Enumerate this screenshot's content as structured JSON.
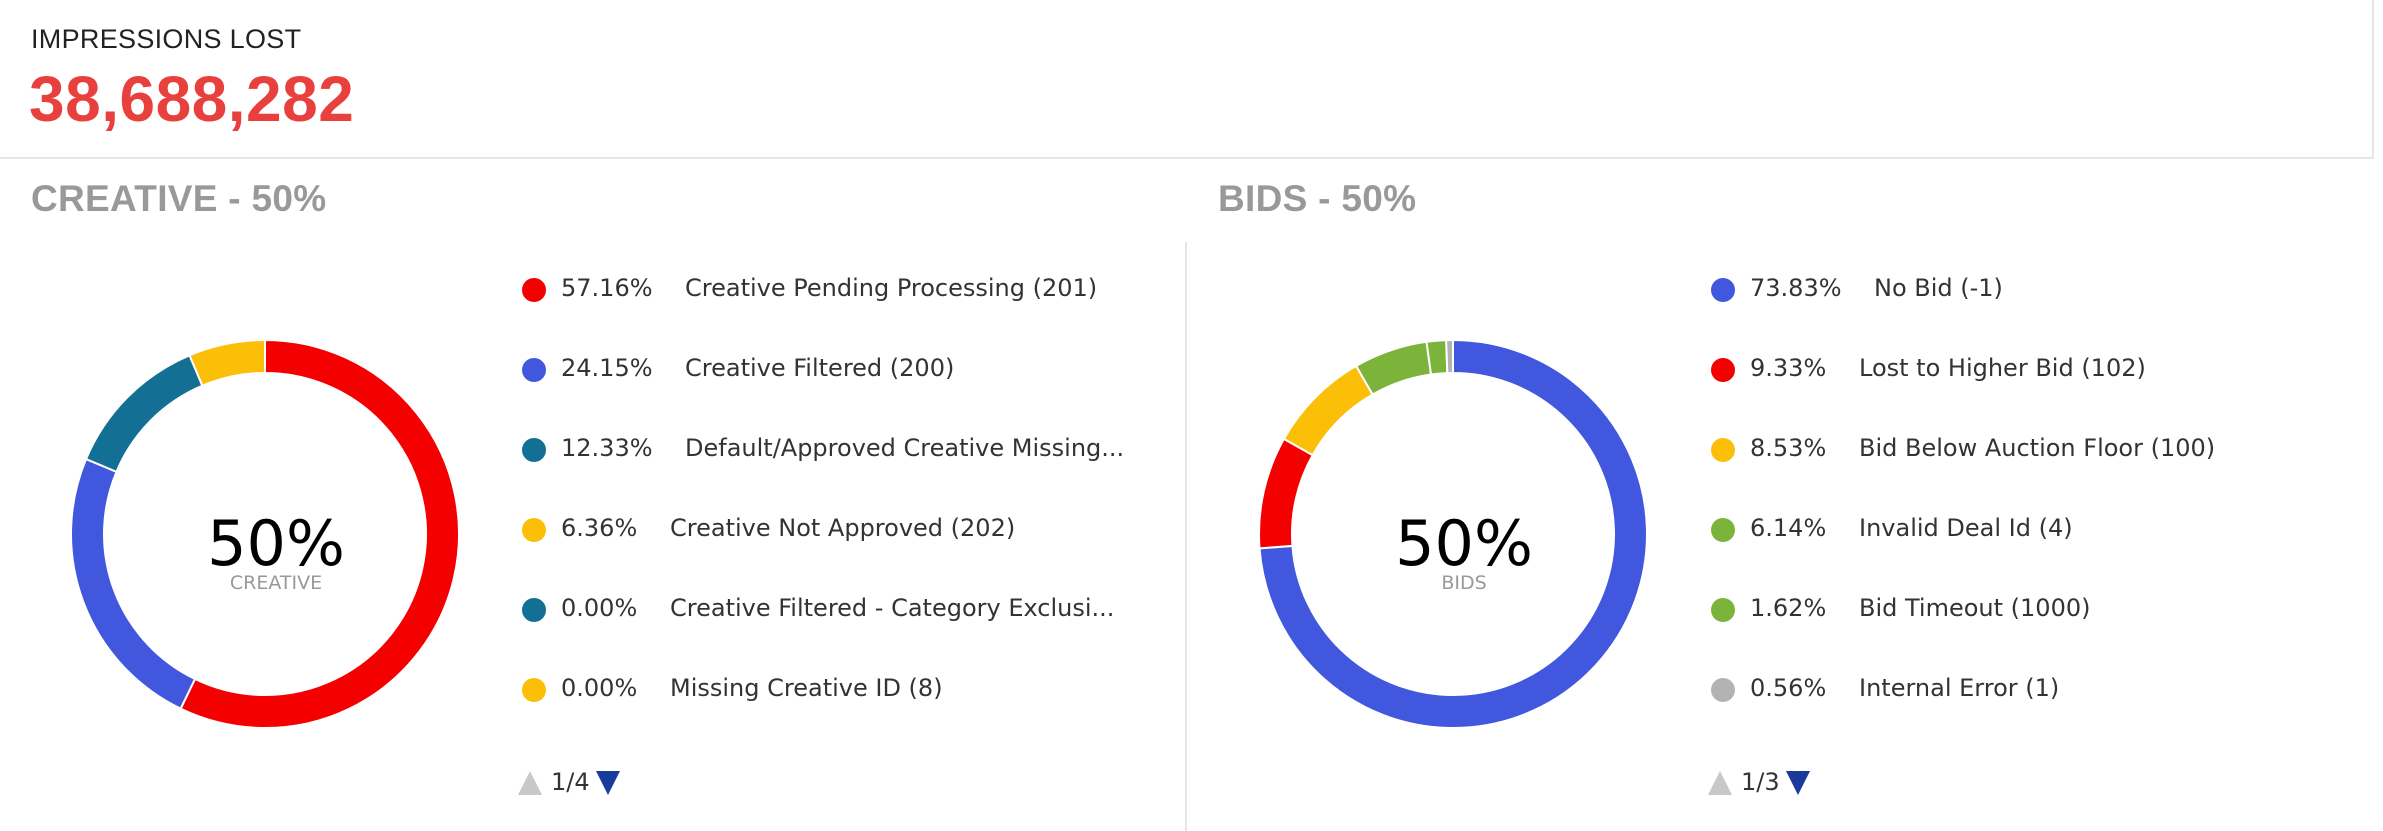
{
  "kpi": {
    "label": "IMPRESSIONS LOST",
    "value": "38,688,282"
  },
  "colors": {
    "kpi_value": "#e8413d",
    "section_title": "#999999"
  },
  "chart_data": [
    {
      "type": "pie",
      "title": "CREATIVE - 50%",
      "center_value": "50%",
      "center_label": "CREATIVE",
      "slices": [
        {
          "label": "Creative Pending Processing (201)",
          "pct_label": "57.16%",
          "value": 57.16,
          "color": "#f40000"
        },
        {
          "label": "Creative Filtered (200)",
          "pct_label": "24.15%",
          "value": 24.15,
          "color": "#4158de"
        },
        {
          "label": "Default/Approved Creative Missing...",
          "pct_label": "12.33%",
          "value": 12.33,
          "color": "#136f94"
        },
        {
          "label": "Creative Not Approved (202)",
          "pct_label": "6.36%",
          "value": 6.36,
          "color": "#fcbf07"
        },
        {
          "label": "Creative Filtered - Category Exclusi...",
          "pct_label": "0.00%",
          "value": 0.0,
          "color": "#136f94"
        },
        {
          "label": "Missing Creative ID (8)",
          "pct_label": "0.00%",
          "value": 0.0,
          "color": "#fcbf07"
        }
      ],
      "pager": "1/4"
    },
    {
      "type": "pie",
      "title": "BIDS - 50%",
      "center_value": "50%",
      "center_label": "BIDS",
      "slices": [
        {
          "label": "No Bid (-1)",
          "pct_label": "73.83%",
          "value": 73.83,
          "color": "#4158de"
        },
        {
          "label": "Lost to Higher Bid (102)",
          "pct_label": "9.33%",
          "value": 9.33,
          "color": "#f40000"
        },
        {
          "label": "Bid Below Auction Floor (100)",
          "pct_label": "8.53%",
          "value": 8.53,
          "color": "#fcbf07"
        },
        {
          "label": "Invalid Deal Id (4)",
          "pct_label": "6.14%",
          "value": 6.14,
          "color": "#7cb33a"
        },
        {
          "label": "Bid Timeout (1000)",
          "pct_label": "1.62%",
          "value": 1.62,
          "color": "#7cb33a"
        },
        {
          "label": "Internal Error (1)",
          "pct_label": "0.56%",
          "value": 0.56,
          "color": "#b3b3b3"
        }
      ],
      "pager": "1/3"
    }
  ]
}
